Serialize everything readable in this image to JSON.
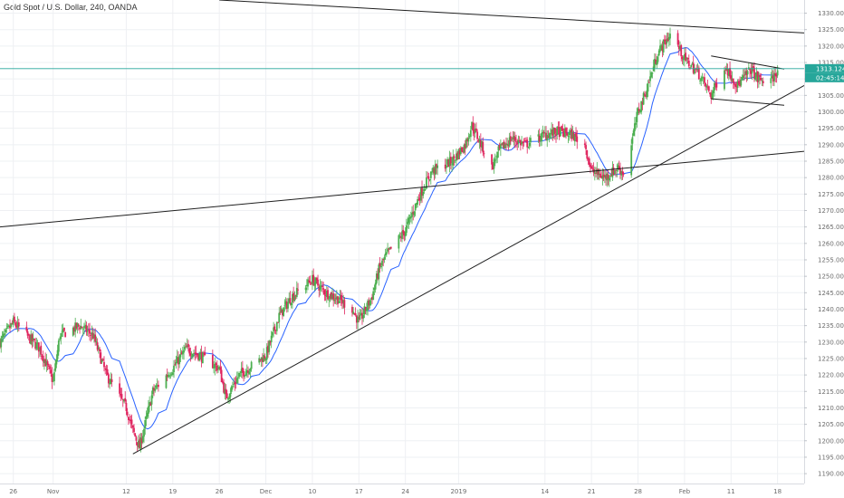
{
  "title": "Gold Spot / U.S. Dollar, 240, OANDA",
  "colors": {
    "up": "#4caf50",
    "down": "#e0245e",
    "ma": "#2962ff",
    "trendline": "#1f1f1f",
    "price_line": "#26a69a",
    "grid": "#eef0f3",
    "text": "#6b6b6b"
  },
  "price_tags": {
    "last_price": "1313.124",
    "countdown": "02:45:14"
  },
  "chart_data": {
    "type": "candlestick",
    "title": "Gold Spot / U.S. Dollar, 240, OANDA",
    "y_axis": {
      "range": [
        1187,
        1334
      ],
      "ticks": [
        "1190.000",
        "1195.000",
        "1200.000",
        "1205.000",
        "1210.000",
        "1215.000",
        "1220.000",
        "1225.000",
        "1230.000",
        "1235.000",
        "1240.000",
        "1245.000",
        "1250.000",
        "1255.000",
        "1260.000",
        "1265.000",
        "1270.000",
        "1275.000",
        "1280.000",
        "1285.000",
        "1290.000",
        "1295.000",
        "1300.000",
        "1305.000",
        "1310.000",
        "1315.000",
        "1320.000",
        "1325.000",
        "1330.000"
      ]
    },
    "x_axis": {
      "range": [
        "2018-10-24",
        "2019-02-22"
      ],
      "ticks": [
        {
          "label": "26",
          "date": "2018-10-26"
        },
        {
          "label": "Nov",
          "date": "2018-11-01"
        },
        {
          "label": "12",
          "date": "2018-11-12"
        },
        {
          "label": "19",
          "date": "2018-11-19"
        },
        {
          "label": "26",
          "date": "2018-11-26"
        },
        {
          "label": "Dec",
          "date": "2018-12-03"
        },
        {
          "label": "10",
          "date": "2018-12-10"
        },
        {
          "label": "17",
          "date": "2018-12-17"
        },
        {
          "label": "24",
          "date": "2018-12-24"
        },
        {
          "label": "2019",
          "date": "2019-01-01"
        },
        {
          "label": "14",
          "date": "2019-01-14"
        },
        {
          "label": "21",
          "date": "2019-01-21"
        },
        {
          "label": "28",
          "date": "2019-01-28"
        },
        {
          "label": "Feb",
          "date": "2019-02-04"
        },
        {
          "label": "11",
          "date": "2019-02-11"
        },
        {
          "label": "18",
          "date": "2019-02-18"
        }
      ]
    },
    "close_path": [
      [
        "2018-10-24",
        1230
      ],
      [
        "2018-10-26",
        1236
      ],
      [
        "2018-10-30",
        1228
      ],
      [
        "2018-11-01",
        1218
      ],
      [
        "2018-11-02",
        1232
      ],
      [
        "2018-11-05",
        1235
      ],
      [
        "2018-11-07",
        1232
      ],
      [
        "2018-11-09",
        1220
      ],
      [
        "2018-11-12",
        1210
      ],
      [
        "2018-11-13",
        1203
      ],
      [
        "2018-11-14",
        1198
      ],
      [
        "2018-11-16",
        1215
      ],
      [
        "2018-11-19",
        1222
      ],
      [
        "2018-11-21",
        1228
      ],
      [
        "2018-11-23",
        1226
      ],
      [
        "2018-11-26",
        1222
      ],
      [
        "2018-11-27",
        1213
      ],
      [
        "2018-11-29",
        1220
      ],
      [
        "2018-12-03",
        1226
      ],
      [
        "2018-12-05",
        1238
      ],
      [
        "2018-12-07",
        1244
      ],
      [
        "2018-12-10",
        1249
      ],
      [
        "2018-12-12",
        1245
      ],
      [
        "2018-12-14",
        1243
      ],
      [
        "2018-12-16",
        1240
      ],
      [
        "2018-12-17",
        1236
      ],
      [
        "2018-12-19",
        1244
      ],
      [
        "2018-12-20",
        1252
      ],
      [
        "2018-12-21",
        1256
      ],
      [
        "2018-12-24",
        1264
      ],
      [
        "2018-12-26",
        1274
      ],
      [
        "2018-12-28",
        1282
      ],
      [
        "2018-12-31",
        1285
      ],
      [
        "2019-01-02",
        1290
      ],
      [
        "2019-01-03",
        1296
      ],
      [
        "2019-01-06",
        1283
      ],
      [
        "2019-01-07",
        1288
      ],
      [
        "2019-01-09",
        1292
      ],
      [
        "2019-01-11",
        1290
      ],
      [
        "2019-01-14",
        1293
      ],
      [
        "2019-01-16",
        1294
      ],
      [
        "2019-01-18",
        1293
      ],
      [
        "2019-01-20",
        1290
      ],
      [
        "2019-01-21",
        1282
      ],
      [
        "2019-01-23",
        1280
      ],
      [
        "2019-01-25",
        1283
      ],
      [
        "2019-01-26",
        1281
      ],
      [
        "2019-01-28",
        1300
      ],
      [
        "2019-01-29",
        1305
      ],
      [
        "2019-01-31",
        1318
      ],
      [
        "2019-02-01",
        1321
      ],
      [
        "2019-02-02",
        1324
      ],
      [
        "2019-02-04",
        1316
      ],
      [
        "2019-02-06",
        1312
      ],
      [
        "2019-02-08",
        1305
      ],
      [
        "2019-02-10",
        1314
      ],
      [
        "2019-02-12",
        1308
      ],
      [
        "2019-02-14",
        1313
      ],
      [
        "2019-02-15",
        1310
      ],
      [
        "2019-02-17",
        1309
      ],
      [
        "2019-02-18",
        1313
      ]
    ],
    "trendlines": [
      {
        "from": [
          "2018-11-13",
          1196
        ],
        "to": [
          "2019-02-22",
          1308
        ]
      },
      {
        "from": [
          "2018-10-24",
          1265
        ],
        "to": [
          "2019-02-22",
          1288
        ]
      },
      {
        "from": [
          "2018-11-26",
          1334
        ],
        "to": [
          "2019-02-22",
          1324
        ]
      },
      {
        "from": [
          "2019-02-08",
          1317
        ],
        "to": [
          "2019-02-19",
          1313
        ]
      },
      {
        "from": [
          "2019-02-08",
          1304
        ],
        "to": [
          "2019-02-19",
          1302
        ]
      }
    ],
    "last_price": 1313.124
  }
}
